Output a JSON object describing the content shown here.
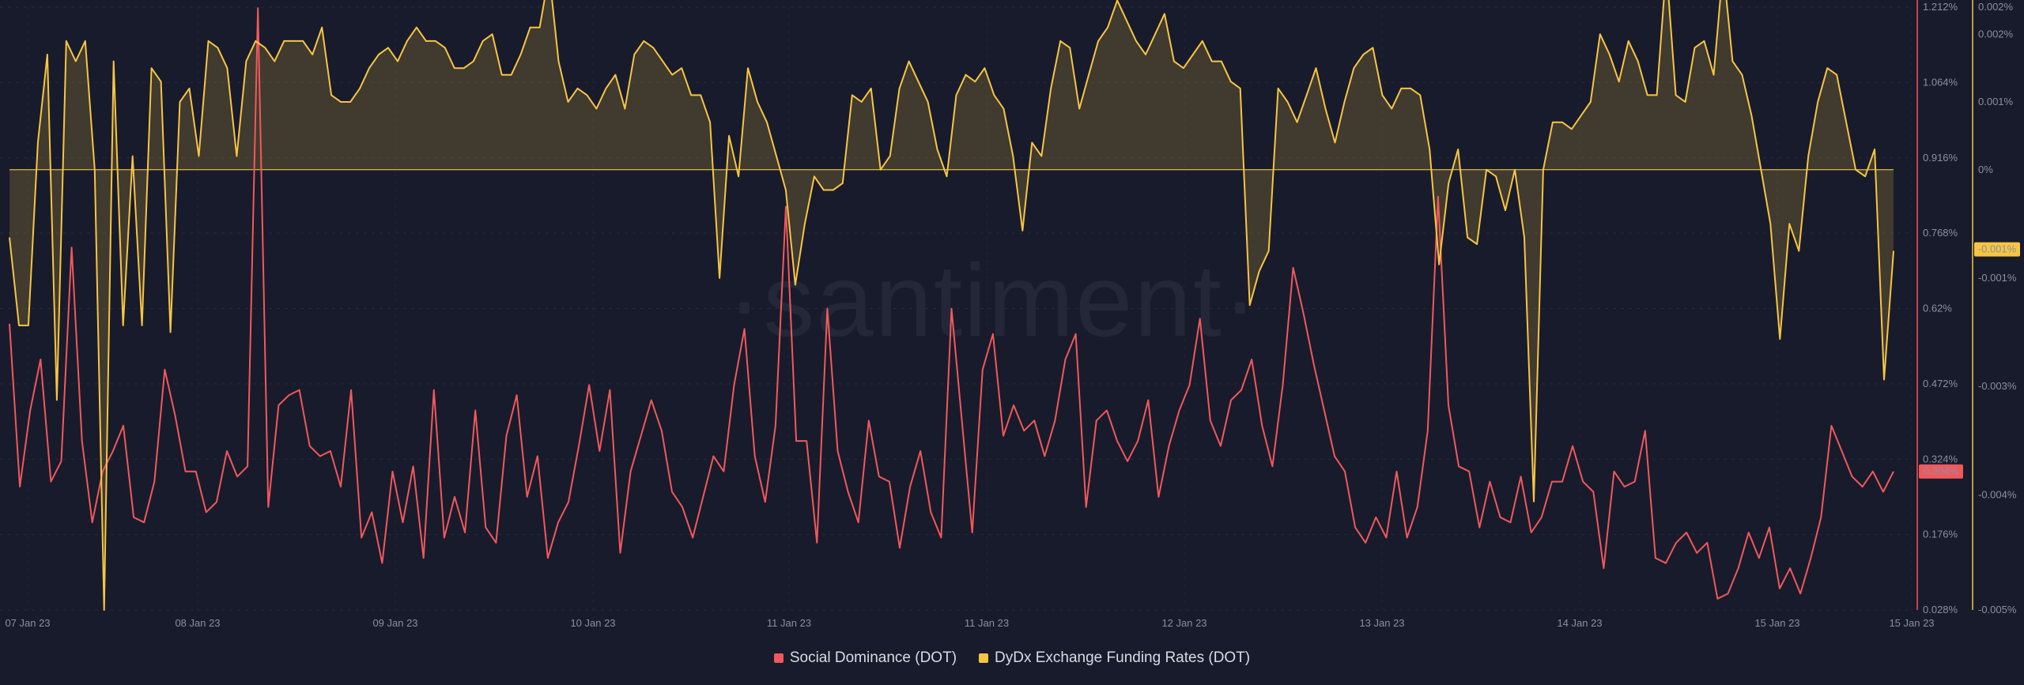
{
  "chart_data": {
    "type": "line",
    "watermark": "·santiment·",
    "x_ticks": [
      "07 Jan 23",
      "08 Jan 23",
      "09 Jan 23",
      "10 Jan 23",
      "11 Jan 23",
      "11 Jan 23",
      "12 Jan 23",
      "13 Jan 23",
      "14 Jan 23",
      "15 Jan 23",
      "15 Jan 23"
    ],
    "left_axis": {
      "ticks": [
        "1.212%",
        "1.064%",
        "0.916%",
        "0.768%",
        "0.62%",
        "0.472%",
        "0.324%",
        "0.176%",
        "0.028%"
      ],
      "range": [
        0.028,
        1.212
      ],
      "unit": "%"
    },
    "right_axis": {
      "ticks": [
        "0.002%",
        "0.002%",
        "0.001%",
        "0%",
        "-0.001%",
        "-0.003%",
        "-0.004%",
        "-0.005%"
      ],
      "tick_values": [
        0.0024,
        0.002,
        0.001,
        0.0,
        -0.0016,
        -0.0032,
        -0.0048,
        -0.0065
      ],
      "range": [
        -0.0065,
        0.0024
      ],
      "unit": "%"
    },
    "series": [
      {
        "name": "Social Dominance (DOT)",
        "axis": "left",
        "color": "#f0595c",
        "current_label": "0.304%",
        "values": [
          0.59,
          0.27,
          0.42,
          0.52,
          0.28,
          0.32,
          0.74,
          0.36,
          0.2,
          0.3,
          0.34,
          0.39,
          0.21,
          0.2,
          0.28,
          0.5,
          0.41,
          0.3,
          0.3,
          0.22,
          0.24,
          0.34,
          0.29,
          0.31,
          1.21,
          0.23,
          0.43,
          0.45,
          0.46,
          0.35,
          0.33,
          0.34,
          0.27,
          0.46,
          0.17,
          0.22,
          0.12,
          0.3,
          0.2,
          0.31,
          0.13,
          0.46,
          0.17,
          0.25,
          0.18,
          0.42,
          0.19,
          0.16,
          0.37,
          0.45,
          0.25,
          0.33,
          0.13,
          0.2,
          0.24,
          0.35,
          0.47,
          0.34,
          0.46,
          0.14,
          0.3,
          0.37,
          0.44,
          0.38,
          0.26,
          0.23,
          0.17,
          0.25,
          0.33,
          0.3,
          0.47,
          0.58,
          0.33,
          0.24,
          0.39,
          0.82,
          0.36,
          0.36,
          0.16,
          0.62,
          0.34,
          0.26,
          0.2,
          0.4,
          0.29,
          0.28,
          0.15,
          0.27,
          0.34,
          0.22,
          0.17,
          0.62,
          0.4,
          0.18,
          0.5,
          0.57,
          0.37,
          0.43,
          0.38,
          0.4,
          0.33,
          0.4,
          0.52,
          0.57,
          0.23,
          0.4,
          0.42,
          0.36,
          0.32,
          0.36,
          0.44,
          0.25,
          0.35,
          0.42,
          0.47,
          0.6,
          0.4,
          0.35,
          0.44,
          0.46,
          0.52,
          0.39,
          0.31,
          0.47,
          0.7,
          0.61,
          0.51,
          0.42,
          0.33,
          0.3,
          0.19,
          0.16,
          0.21,
          0.17,
          0.3,
          0.17,
          0.23,
          0.38,
          0.84,
          0.43,
          0.31,
          0.3,
          0.19,
          0.28,
          0.21,
          0.2,
          0.29,
          0.18,
          0.21,
          0.28,
          0.28,
          0.35,
          0.28,
          0.26,
          0.11,
          0.3,
          0.27,
          0.28,
          0.38,
          0.13,
          0.12,
          0.16,
          0.18,
          0.14,
          0.16,
          0.05,
          0.06,
          0.11,
          0.18,
          0.13,
          0.19,
          0.07,
          0.11,
          0.06,
          0.13,
          0.21,
          0.39,
          0.34,
          0.29,
          0.27,
          0.3,
          0.26,
          0.3
        ],
        "values_note": null
      },
      {
        "name": "DyDx Exchange Funding Rates (DOT)",
        "axis": "right",
        "color": "#f7c544",
        "current_label": "-0.001%",
        "values": []
      }
    ],
    "legend": [
      "Social Dominance (DOT)",
      "DyDx Exchange Funding Rates (DOT)"
    ],
    "legend_position": "bottom-center",
    "grid": true
  }
}
